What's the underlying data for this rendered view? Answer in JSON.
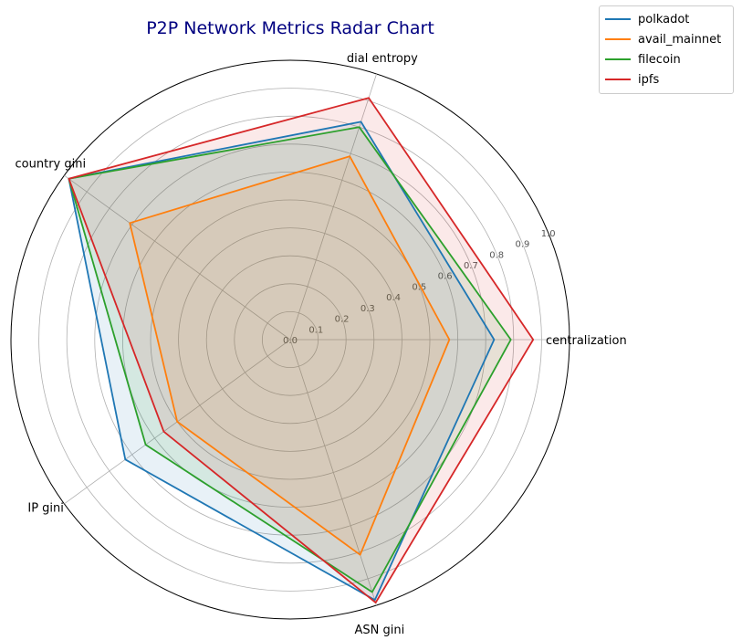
{
  "chart_data": {
    "type": "radar",
    "title": "P2P Network Metrics Radar Chart",
    "title_color": "#000080",
    "axes": [
      "centralization",
      "dial entropy",
      "country gini",
      "IP gini",
      "ASN gini"
    ],
    "radial_ticks": [
      "0.0",
      "0.1",
      "0.2",
      "0.3",
      "0.4",
      "0.5",
      "0.6",
      "0.7",
      "0.8",
      "0.9",
      "1.0"
    ],
    "rlim": [
      0,
      1.0
    ],
    "grid": true,
    "legend_position": "top-right",
    "series": [
      {
        "name": "polkadot",
        "color": "#1f77b4",
        "values": [
          0.73,
          0.82,
          0.98,
          0.73,
          0.98
        ]
      },
      {
        "name": "avail_mainnet",
        "color": "#ff7f0e",
        "values": [
          0.57,
          0.69,
          0.71,
          0.5,
          0.81
        ]
      },
      {
        "name": "filecoin",
        "color": "#2ca02c",
        "values": [
          0.79,
          0.8,
          0.98,
          0.64,
          0.95
        ]
      },
      {
        "name": "ipfs",
        "color": "#d62728",
        "values": [
          0.87,
          0.91,
          0.98,
          0.56,
          0.99
        ]
      }
    ]
  }
}
